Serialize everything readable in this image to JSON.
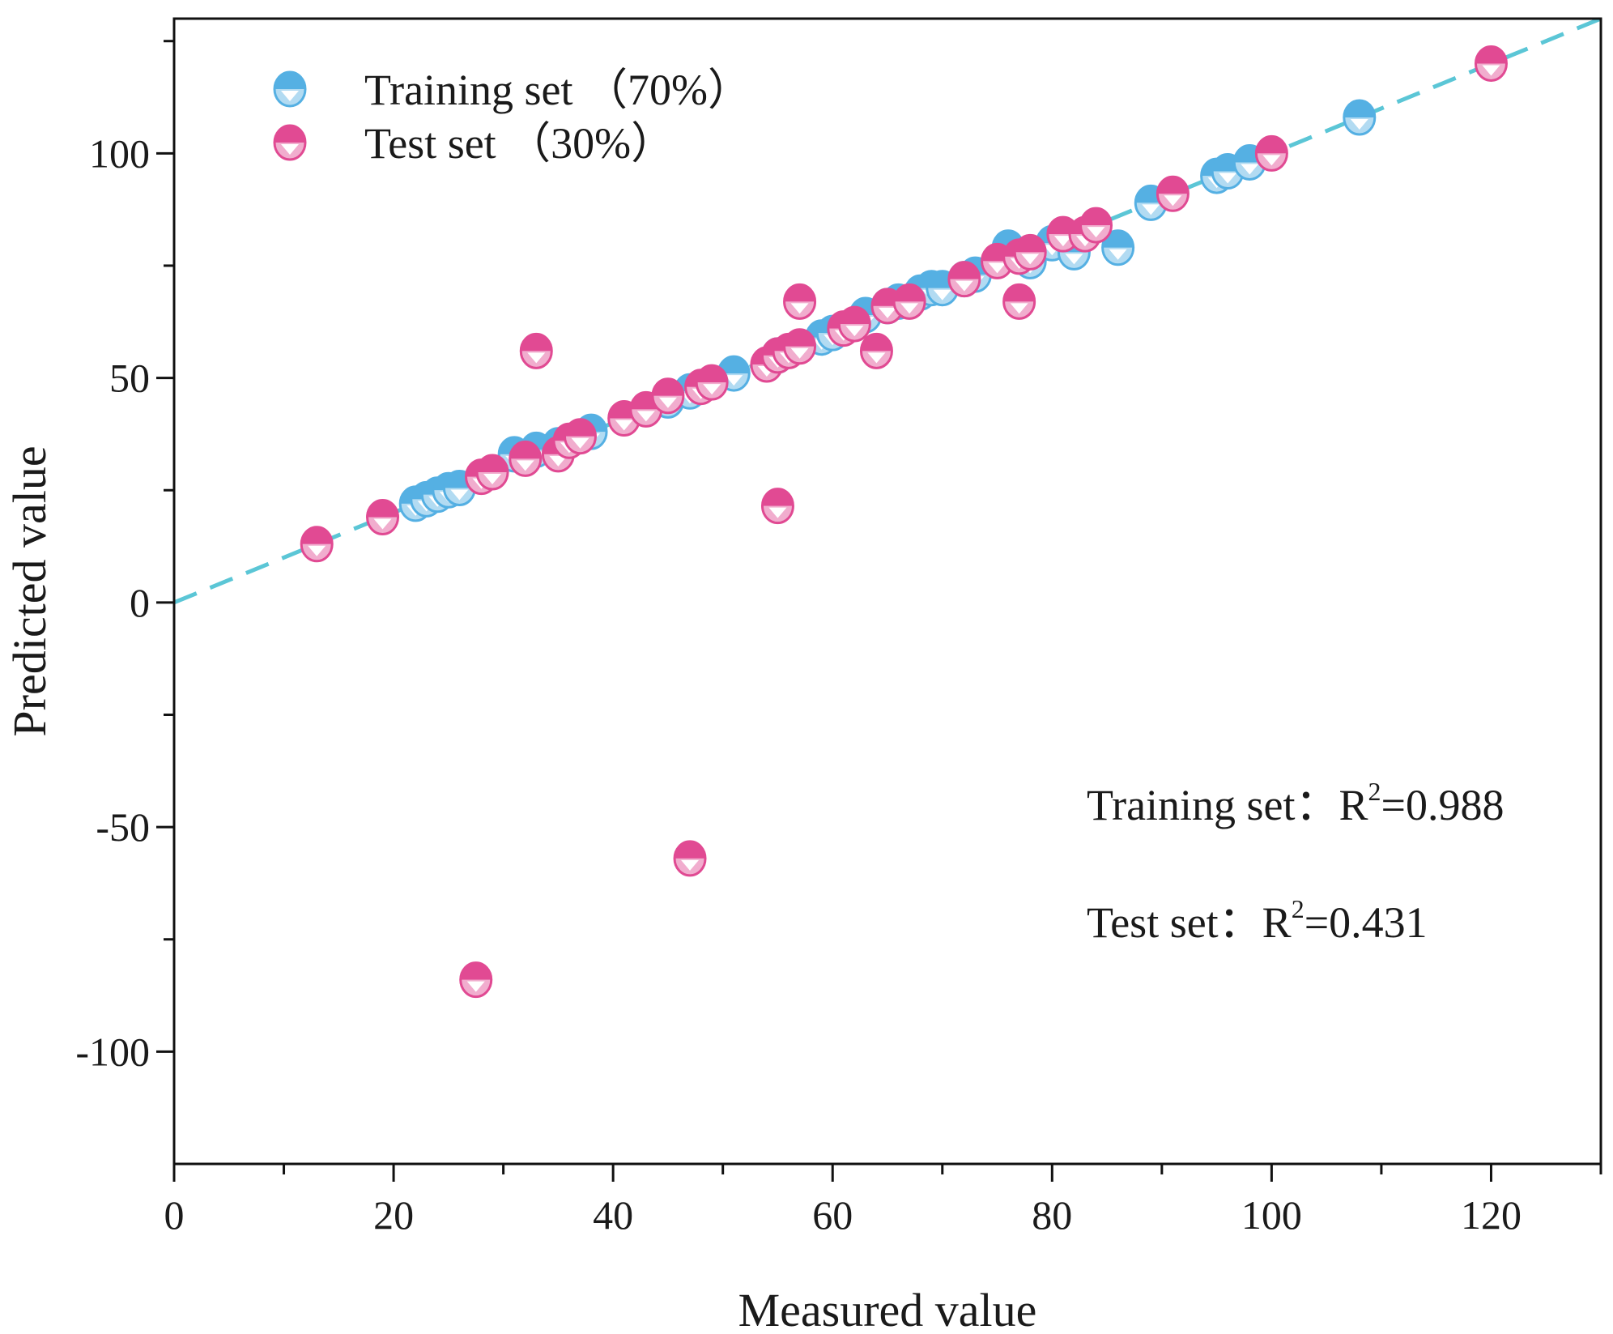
{
  "chart_data": {
    "type": "scatter",
    "xlabel": "Measured value",
    "ylabel": "Predicted value",
    "xlim": [
      0,
      130
    ],
    "ylim": [
      -125,
      130
    ],
    "xticks": [
      0,
      20,
      40,
      60,
      80,
      100,
      120
    ],
    "yticks": [
      -100,
      -50,
      0,
      50,
      100
    ],
    "grid": false,
    "legend_position": "top-left",
    "reference_line": {
      "type": "y=x",
      "style": "dashed",
      "color": "#5bc6d6"
    },
    "series": [
      {
        "name": "Training set  （70%）",
        "color": "#55b0e3",
        "points": [
          [
            22,
            22
          ],
          [
            23,
            23
          ],
          [
            24,
            24
          ],
          [
            25,
            25
          ],
          [
            26,
            25.5
          ],
          [
            31,
            33
          ],
          [
            33,
            34
          ],
          [
            35,
            35
          ],
          [
            38,
            38
          ],
          [
            45,
            45
          ],
          [
            47,
            47
          ],
          [
            51,
            51
          ],
          [
            55,
            55
          ],
          [
            59,
            59
          ],
          [
            60,
            60
          ],
          [
            63,
            64
          ],
          [
            65,
            66
          ],
          [
            66,
            67
          ],
          [
            68,
            69
          ],
          [
            69,
            70
          ],
          [
            70,
            70
          ],
          [
            72,
            72
          ],
          [
            73,
            73
          ],
          [
            76,
            79
          ],
          [
            78,
            76
          ],
          [
            80,
            80
          ],
          [
            82,
            78
          ],
          [
            86,
            79
          ],
          [
            89,
            89
          ],
          [
            95,
            95
          ],
          [
            96,
            96
          ],
          [
            98,
            98
          ],
          [
            108,
            108
          ]
        ]
      },
      {
        "name": "Test set  （30%）",
        "color": "#e14a93",
        "points": [
          [
            13,
            13
          ],
          [
            19,
            19
          ],
          [
            28,
            28
          ],
          [
            29,
            29
          ],
          [
            32,
            32
          ],
          [
            33,
            56
          ],
          [
            35,
            33
          ],
          [
            36,
            36
          ],
          [
            37,
            37
          ],
          [
            41,
            41
          ],
          [
            43,
            43
          ],
          [
            45,
            46
          ],
          [
            47,
            -57
          ],
          [
            48,
            48
          ],
          [
            49,
            49
          ],
          [
            54,
            53
          ],
          [
            55,
            21.5
          ],
          [
            55,
            55
          ],
          [
            56,
            56
          ],
          [
            57,
            67
          ],
          [
            57,
            57
          ],
          [
            61,
            61
          ],
          [
            62,
            62
          ],
          [
            64,
            56
          ],
          [
            65,
            66
          ],
          [
            67,
            67
          ],
          [
            72,
            72
          ],
          [
            75,
            76
          ],
          [
            77,
            67
          ],
          [
            77,
            77
          ],
          [
            78,
            78
          ],
          [
            81,
            82
          ],
          [
            83,
            82
          ],
          [
            84,
            84
          ],
          [
            91,
            91
          ],
          [
            100,
            100
          ],
          [
            120,
            120
          ],
          [
            27.5,
            -84
          ]
        ]
      }
    ],
    "annotations": [
      {
        "label": "Training set：R",
        "sup": "2",
        "value": "=0.988"
      },
      {
        "label": "Test set：R",
        "sup": "2",
        "value": "=0.431"
      }
    ]
  }
}
